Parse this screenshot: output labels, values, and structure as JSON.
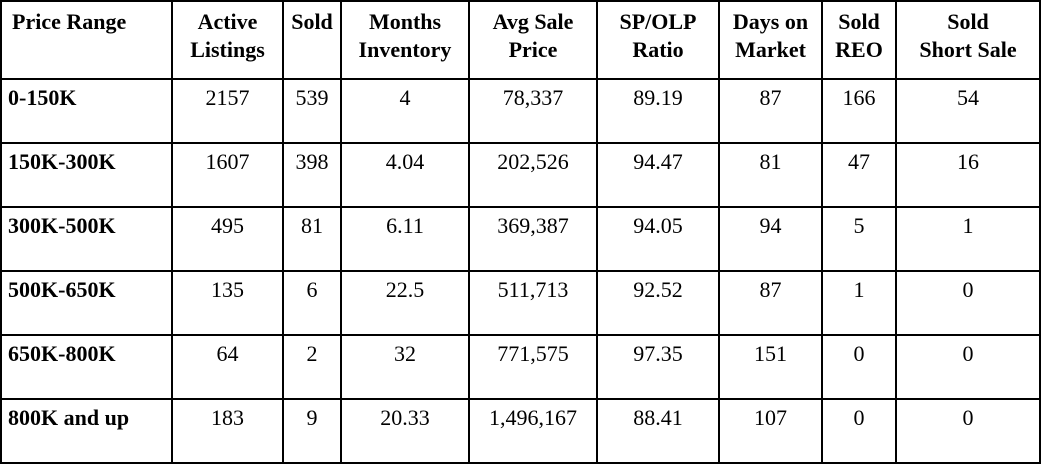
{
  "table": {
    "headers": [
      [
        "Price Range"
      ],
      [
        "Active",
        "Listings"
      ],
      [
        "Sold"
      ],
      [
        "Months",
        "Inventory"
      ],
      [
        "Avg Sale",
        "Price"
      ],
      [
        "SP/OLP",
        "Ratio"
      ],
      [
        "Days on",
        "Market"
      ],
      [
        "Sold",
        "REO"
      ],
      [
        "Sold",
        "Short Sale"
      ]
    ],
    "rows": [
      [
        "0-150K",
        "2157",
        "539",
        "4",
        "78,337",
        "89.19",
        "87",
        "166",
        "54"
      ],
      [
        "150K-300K",
        "1607",
        "398",
        "4.04",
        "202,526",
        "94.47",
        "81",
        "47",
        "16"
      ],
      [
        "300K-500K",
        "495",
        "81",
        "6.11",
        "369,387",
        "94.05",
        "94",
        "5",
        "1"
      ],
      [
        "500K-650K",
        "135",
        "6",
        "22.5",
        "511,713",
        "92.52",
        "87",
        "1",
        "0"
      ],
      [
        "650K-800K",
        "64",
        "2",
        "32",
        "771,575",
        "97.35",
        "151",
        "0",
        "0"
      ],
      [
        "800K and up",
        "183",
        "9",
        "20.33",
        "1,496,167",
        "88.41",
        "107",
        "0",
        "0"
      ]
    ]
  }
}
